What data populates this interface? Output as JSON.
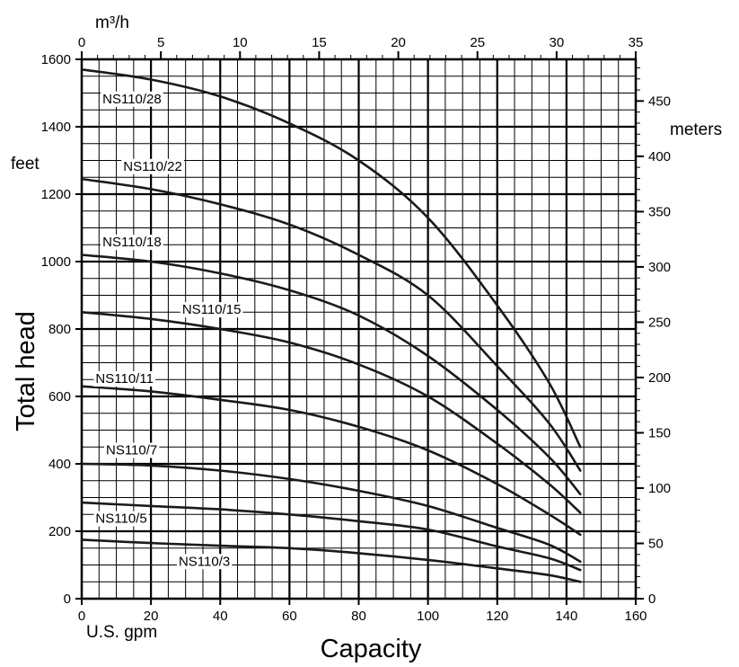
{
  "chart_data": {
    "type": "line",
    "xlabel": "Capacity",
    "ylabel": "Total head",
    "x_unit": "U.S. gpm",
    "x2_unit": "m³/h",
    "y_unit": "feet",
    "y2_unit": "meters",
    "xlim": [
      0,
      160
    ],
    "ylim": [
      0,
      1600
    ],
    "x2lim": [
      0,
      35
    ],
    "y2lim": [
      0,
      487.7
    ],
    "x_ticks": [
      "0",
      "20",
      "40",
      "60",
      "80",
      "100",
      "120",
      "140",
      "160"
    ],
    "y_ticks": [
      "0",
      "200",
      "400",
      "600",
      "800",
      "1000",
      "1200",
      "1400",
      "1600"
    ],
    "x2_ticks": [
      "0",
      "5",
      "10",
      "15",
      "20",
      "25",
      "30",
      "35"
    ],
    "y2_ticks": [
      "0",
      "50",
      "100",
      "150",
      "200",
      "250",
      "300",
      "350",
      "400",
      "450"
    ],
    "grid": true,
    "series": [
      {
        "name": "NS110/28",
        "label_at": [
          6,
          1470
        ],
        "x": [
          0,
          20,
          40,
          60,
          80,
          100,
          120,
          135,
          144
        ],
        "y": [
          1570,
          1540,
          1490,
          1410,
          1300,
          1130,
          870,
          640,
          450
        ]
      },
      {
        "name": "NS110/22",
        "label_at": [
          12,
          1270
        ],
        "x": [
          0,
          20,
          40,
          60,
          80,
          100,
          120,
          135,
          144
        ],
        "y": [
          1245,
          1215,
          1170,
          1110,
          1020,
          900,
          690,
          520,
          380
        ]
      },
      {
        "name": "NS110/18",
        "label_at": [
          6,
          1045
        ],
        "x": [
          0,
          20,
          40,
          60,
          80,
          100,
          120,
          135,
          144
        ],
        "y": [
          1020,
          1000,
          965,
          915,
          840,
          720,
          560,
          420,
          310
        ]
      },
      {
        "name": "NS110/15",
        "label_at": [
          29,
          845
        ],
        "x": [
          0,
          20,
          40,
          60,
          80,
          100,
          120,
          135,
          144
        ],
        "y": [
          850,
          830,
          800,
          760,
          695,
          600,
          460,
          340,
          255
        ]
      },
      {
        "name": "NS110/11",
        "label_at": [
          4,
          640
        ],
        "x": [
          0,
          20,
          40,
          60,
          80,
          100,
          120,
          135,
          144
        ],
        "y": [
          630,
          615,
          590,
          560,
          510,
          440,
          340,
          250,
          190
        ]
      },
      {
        "name": "NS110/7",
        "label_at": [
          7,
          428
        ],
        "x": [
          0,
          20,
          40,
          60,
          80,
          100,
          120,
          135,
          144
        ],
        "y": [
          400,
          395,
          380,
          355,
          320,
          275,
          210,
          160,
          110
        ]
      },
      {
        "name": "NS110/5",
        "label_at": [
          4,
          225
        ],
        "x": [
          0,
          20,
          40,
          60,
          80,
          100,
          120,
          135,
          144
        ],
        "y": [
          285,
          275,
          265,
          250,
          230,
          205,
          155,
          120,
          85
        ]
      },
      {
        "name": "NS110/3",
        "label_at": [
          28,
          98
        ],
        "x": [
          0,
          20,
          40,
          60,
          80,
          100,
          120,
          135,
          144
        ],
        "y": [
          175,
          165,
          157,
          150,
          135,
          115,
          90,
          70,
          50
        ]
      }
    ]
  }
}
